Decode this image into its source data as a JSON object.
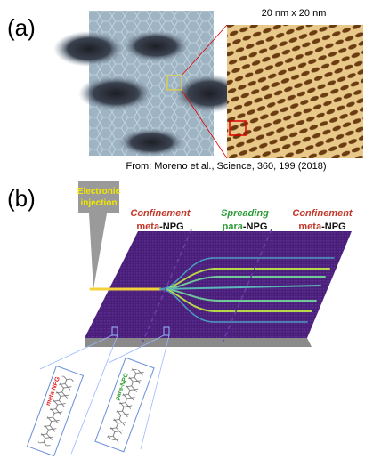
{
  "panel_a": {
    "label": "(a)",
    "scale": "20 nm x 20 nm",
    "credit": "From: Moreno et al.,  Science, 360, 199 (2018)"
  },
  "panel_b": {
    "label": "(b)",
    "injection": [
      "Electronic",
      "injection"
    ],
    "regions": [
      {
        "title": "Confinement",
        "prefix": "meta",
        "suffix": "-NPG"
      },
      {
        "title": "Spreading",
        "prefix": "para",
        "suffix": "-NPG"
      },
      {
        "title": "Confinement",
        "prefix": "meta",
        "suffix": "-NPG"
      }
    ],
    "insets": [
      "meta-NPG",
      "para-NPG"
    ]
  }
}
